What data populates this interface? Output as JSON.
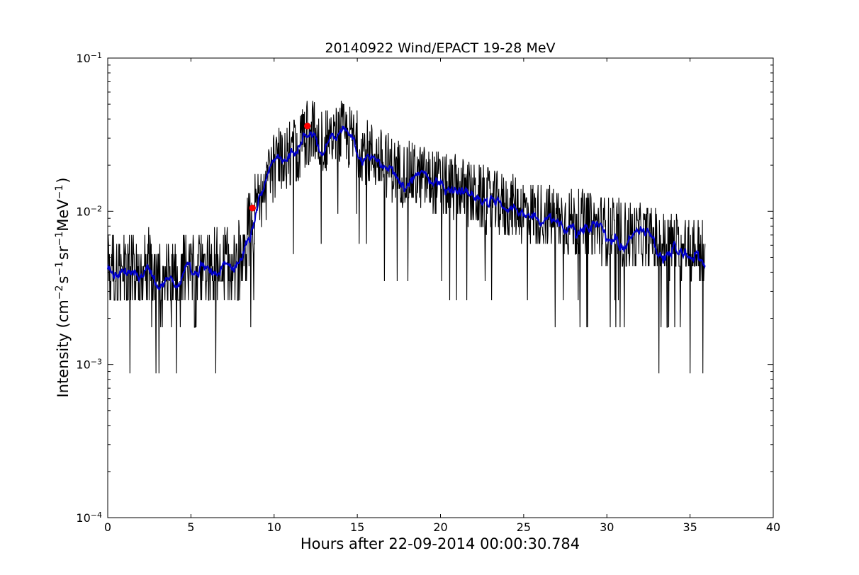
{
  "chart_data": {
    "type": "line",
    "title": "20140922 Wind/EPACT 19-28 MeV",
    "xlabel": "Hours after 22-09-2014 00:00:30.784",
    "ylabel": {
      "prefix": "Intensity (cm",
      "exp1": "−2",
      "mid1": "s",
      "exp2": "−1",
      "mid2": "sr",
      "exp3": "−1",
      "mid3": "MeV",
      "exp4": "−1",
      "suffix": ")"
    },
    "xlim": [
      0,
      40
    ],
    "ylim": [
      0.0001,
      0.1
    ],
    "yscale": "log",
    "x_ticks": [
      "0",
      "5",
      "10",
      "15",
      "20",
      "25",
      "30",
      "35",
      "40"
    ],
    "y_ticks": [
      {
        "base": "10",
        "exp": "−4"
      },
      {
        "base": "10",
        "exp": "−3"
      },
      {
        "base": "10",
        "exp": "−2"
      },
      {
        "base": "10",
        "exp": "−1"
      }
    ],
    "colors": {
      "raw": "#000000",
      "smoothed": "#0000cc",
      "markers": "#ff0000"
    },
    "series": [
      {
        "points": [
          [
            0.0,
            0.0043
          ],
          [
            0.5,
            0.0042
          ],
          [
            1.0,
            0.0039
          ],
          [
            1.5,
            0.0041
          ],
          [
            2.0,
            0.0038
          ],
          [
            2.5,
            0.0042
          ],
          [
            3.0,
            0.0038
          ],
          [
            3.5,
            0.0035
          ],
          [
            4.0,
            0.0037
          ],
          [
            4.5,
            0.004
          ],
          [
            5.0,
            0.0037
          ],
          [
            5.5,
            0.0038
          ],
          [
            6.0,
            0.004
          ],
          [
            6.5,
            0.0043
          ],
          [
            7.0,
            0.0044
          ],
          [
            7.5,
            0.0041
          ],
          [
            8.0,
            0.0052
          ],
          [
            8.3,
            0.0065
          ],
          [
            8.7,
            0.009
          ],
          [
            9.0,
            0.0115
          ],
          [
            9.5,
            0.0145
          ],
          [
            10.0,
            0.02
          ],
          [
            10.5,
            0.0225
          ],
          [
            11.0,
            0.024
          ],
          [
            11.5,
            0.026
          ],
          [
            12.0,
            0.033
          ],
          [
            12.5,
            0.031
          ],
          [
            13.0,
            0.028
          ],
          [
            13.5,
            0.029
          ],
          [
            14.0,
            0.032
          ],
          [
            14.5,
            0.03
          ],
          [
            15.0,
            0.028
          ],
          [
            15.5,
            0.025
          ],
          [
            16.0,
            0.023
          ],
          [
            16.5,
            0.021
          ],
          [
            17.0,
            0.0195
          ],
          [
            17.5,
            0.018
          ],
          [
            18.0,
            0.0175
          ],
          [
            18.5,
            0.017
          ],
          [
            19.0,
            0.0165
          ],
          [
            19.5,
            0.0155
          ],
          [
            20.0,
            0.015
          ],
          [
            20.5,
            0.014
          ],
          [
            21.0,
            0.0145
          ],
          [
            21.5,
            0.0135
          ],
          [
            22.0,
            0.0125
          ],
          [
            22.5,
            0.012
          ],
          [
            23.0,
            0.0115
          ],
          [
            23.5,
            0.0112
          ],
          [
            24.0,
            0.0108
          ],
          [
            24.5,
            0.0105
          ],
          [
            25.0,
            0.0102
          ],
          [
            25.5,
            0.0098
          ],
          [
            26.0,
            0.0095
          ],
          [
            26.5,
            0.0092
          ],
          [
            27.0,
            0.009
          ],
          [
            27.5,
            0.0088
          ],
          [
            28.0,
            0.0085
          ],
          [
            28.5,
            0.0083
          ],
          [
            29.0,
            0.008
          ],
          [
            29.5,
            0.0078
          ],
          [
            30.0,
            0.0076
          ],
          [
            30.5,
            0.0074
          ],
          [
            31.0,
            0.0072
          ],
          [
            31.5,
            0.007
          ],
          [
            32.0,
            0.0068
          ],
          [
            32.5,
            0.0066
          ],
          [
            33.0,
            0.0064
          ],
          [
            33.5,
            0.0062
          ],
          [
            34.0,
            0.006
          ],
          [
            34.5,
            0.0058
          ],
          [
            35.0,
            0.0057
          ],
          [
            35.5,
            0.0056
          ],
          [
            35.9,
            0.0056
          ]
        ]
      }
    ],
    "markers": [
      {
        "x": 8.7,
        "y": 0.0105
      },
      {
        "x": 12.0,
        "y": 0.036
      }
    ],
    "raw_noise": {
      "n": 1400,
      "x_end": 35.9,
      "spread_decades": 0.22,
      "quantum": 0.000875
    }
  }
}
